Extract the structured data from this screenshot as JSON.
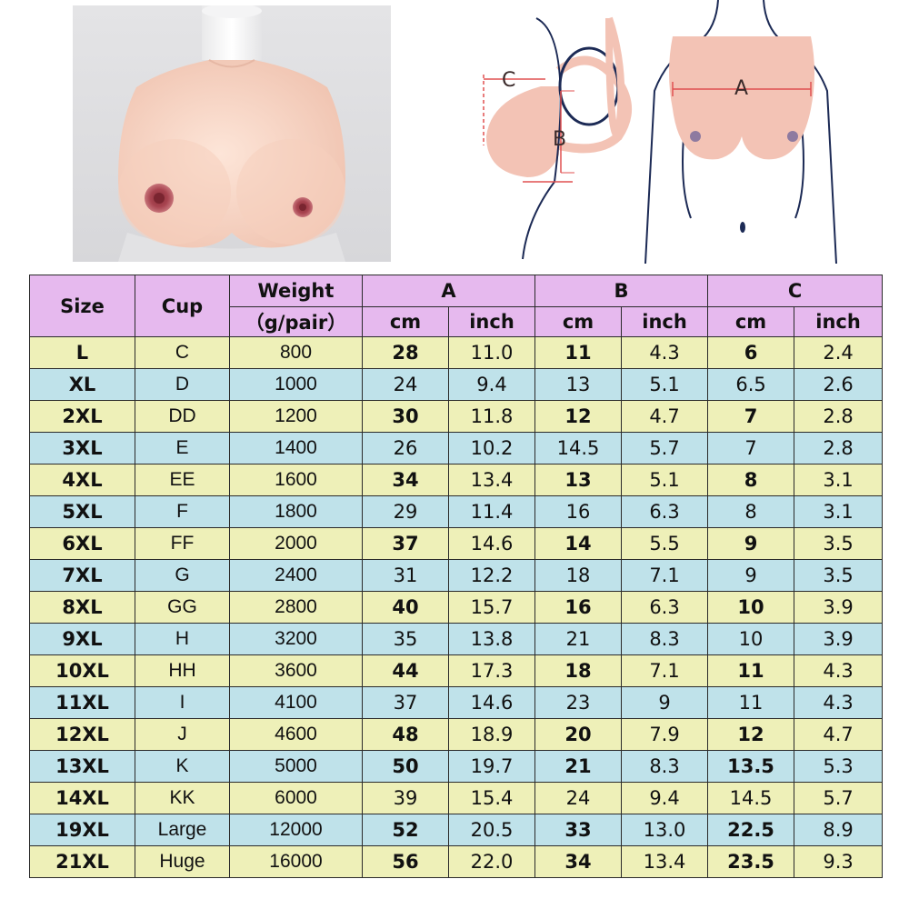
{
  "header": {
    "size": "Size",
    "cup": "Cup",
    "weight": "Weight",
    "weight_unit": "（g/pair）",
    "group_a": "A",
    "group_b": "B",
    "group_c": "C",
    "cm": "cm",
    "inch": "inch"
  },
  "diagram": {
    "label_a": "A",
    "label_b": "B",
    "label_c": "C"
  },
  "colors": {
    "header": "#e6b9ee",
    "row_yellow": "#eef0b8",
    "row_blue": "#bfe2ea",
    "skin": "#f5cdbf"
  },
  "rows": [
    {
      "size": "L",
      "cup": "C",
      "weight": "800",
      "a_cm": "28",
      "a_in": "11.0",
      "b_cm": "11",
      "b_in": "4.3",
      "c_cm": "6",
      "c_in": "2.4",
      "bold": true
    },
    {
      "size": "XL",
      "cup": "D",
      "weight": "1000",
      "a_cm": "24",
      "a_in": "9.4",
      "b_cm": "13",
      "b_in": "5.1",
      "c_cm": "6.5",
      "c_in": "2.6",
      "bold": false
    },
    {
      "size": "2XL",
      "cup": "DD",
      "weight": "1200",
      "a_cm": "30",
      "a_in": "11.8",
      "b_cm": "12",
      "b_in": "4.7",
      "c_cm": "7",
      "c_in": "2.8",
      "bold": true
    },
    {
      "size": "3XL",
      "cup": "E",
      "weight": "1400",
      "a_cm": "26",
      "a_in": "10.2",
      "b_cm": "14.5",
      "b_in": "5.7",
      "c_cm": "7",
      "c_in": "2.8",
      "bold": false
    },
    {
      "size": "4XL",
      "cup": "EE",
      "weight": "1600",
      "a_cm": "34",
      "a_in": "13.4",
      "b_cm": "13",
      "b_in": "5.1",
      "c_cm": "8",
      "c_in": "3.1",
      "bold": true
    },
    {
      "size": "5XL",
      "cup": "F",
      "weight": "1800",
      "a_cm": "29",
      "a_in": "11.4",
      "b_cm": "16",
      "b_in": "6.3",
      "c_cm": "8",
      "c_in": "3.1",
      "bold": false
    },
    {
      "size": "6XL",
      "cup": "FF",
      "weight": "2000",
      "a_cm": "37",
      "a_in": "14.6",
      "b_cm": "14",
      "b_in": "5.5",
      "c_cm": "9",
      "c_in": "3.5",
      "bold": true
    },
    {
      "size": "7XL",
      "cup": "G",
      "weight": "2400",
      "a_cm": "31",
      "a_in": "12.2",
      "b_cm": "18",
      "b_in": "7.1",
      "c_cm": "9",
      "c_in": "3.5",
      "bold": false
    },
    {
      "size": "8XL",
      "cup": "GG",
      "weight": "2800",
      "a_cm": "40",
      "a_in": "15.7",
      "b_cm": "16",
      "b_in": "6.3",
      "c_cm": "10",
      "c_in": "3.9",
      "bold": true
    },
    {
      "size": "9XL",
      "cup": "H",
      "weight": "3200",
      "a_cm": "35",
      "a_in": "13.8",
      "b_cm": "21",
      "b_in": "8.3",
      "c_cm": "10",
      "c_in": "3.9",
      "bold": false
    },
    {
      "size": "10XL",
      "cup": "HH",
      "weight": "3600",
      "a_cm": "44",
      "a_in": "17.3",
      "b_cm": "18",
      "b_in": "7.1",
      "c_cm": "11",
      "c_in": "4.3",
      "bold": true
    },
    {
      "size": "11XL",
      "cup": "I",
      "weight": "4100",
      "a_cm": "37",
      "a_in": "14.6",
      "b_cm": "23",
      "b_in": "9",
      "c_cm": "11",
      "c_in": "4.3",
      "bold": false
    },
    {
      "size": "12XL",
      "cup": "J",
      "weight": "4600",
      "a_cm": "48",
      "a_in": "18.9",
      "b_cm": "20",
      "b_in": "7.9",
      "c_cm": "12",
      "c_in": "4.7",
      "bold": true
    },
    {
      "size": "13XL",
      "cup": "K",
      "weight": "5000",
      "a_cm": "50",
      "a_in": "19.7",
      "b_cm": "21",
      "b_in": "8.3",
      "c_cm": "13.5",
      "c_in": "5.3",
      "bold": true
    },
    {
      "size": "14XL",
      "cup": "KK",
      "weight": "6000",
      "a_cm": "39",
      "a_in": "15.4",
      "b_cm": "24",
      "b_in": "9.4",
      "c_cm": "14.5",
      "c_in": "5.7",
      "bold": false
    },
    {
      "size": "19XL",
      "cup": "Large",
      "weight": "12000",
      "a_cm": "52",
      "a_in": "20.5",
      "b_cm": "33",
      "b_in": "13.0",
      "c_cm": "22.5",
      "c_in": "8.9",
      "bold": true
    },
    {
      "size": "21XL",
      "cup": "Huge",
      "weight": "16000",
      "a_cm": "56",
      "a_in": "22.0",
      "b_cm": "34",
      "b_in": "13.4",
      "c_cm": "23.5",
      "c_in": "9.3",
      "bold": true
    }
  ]
}
